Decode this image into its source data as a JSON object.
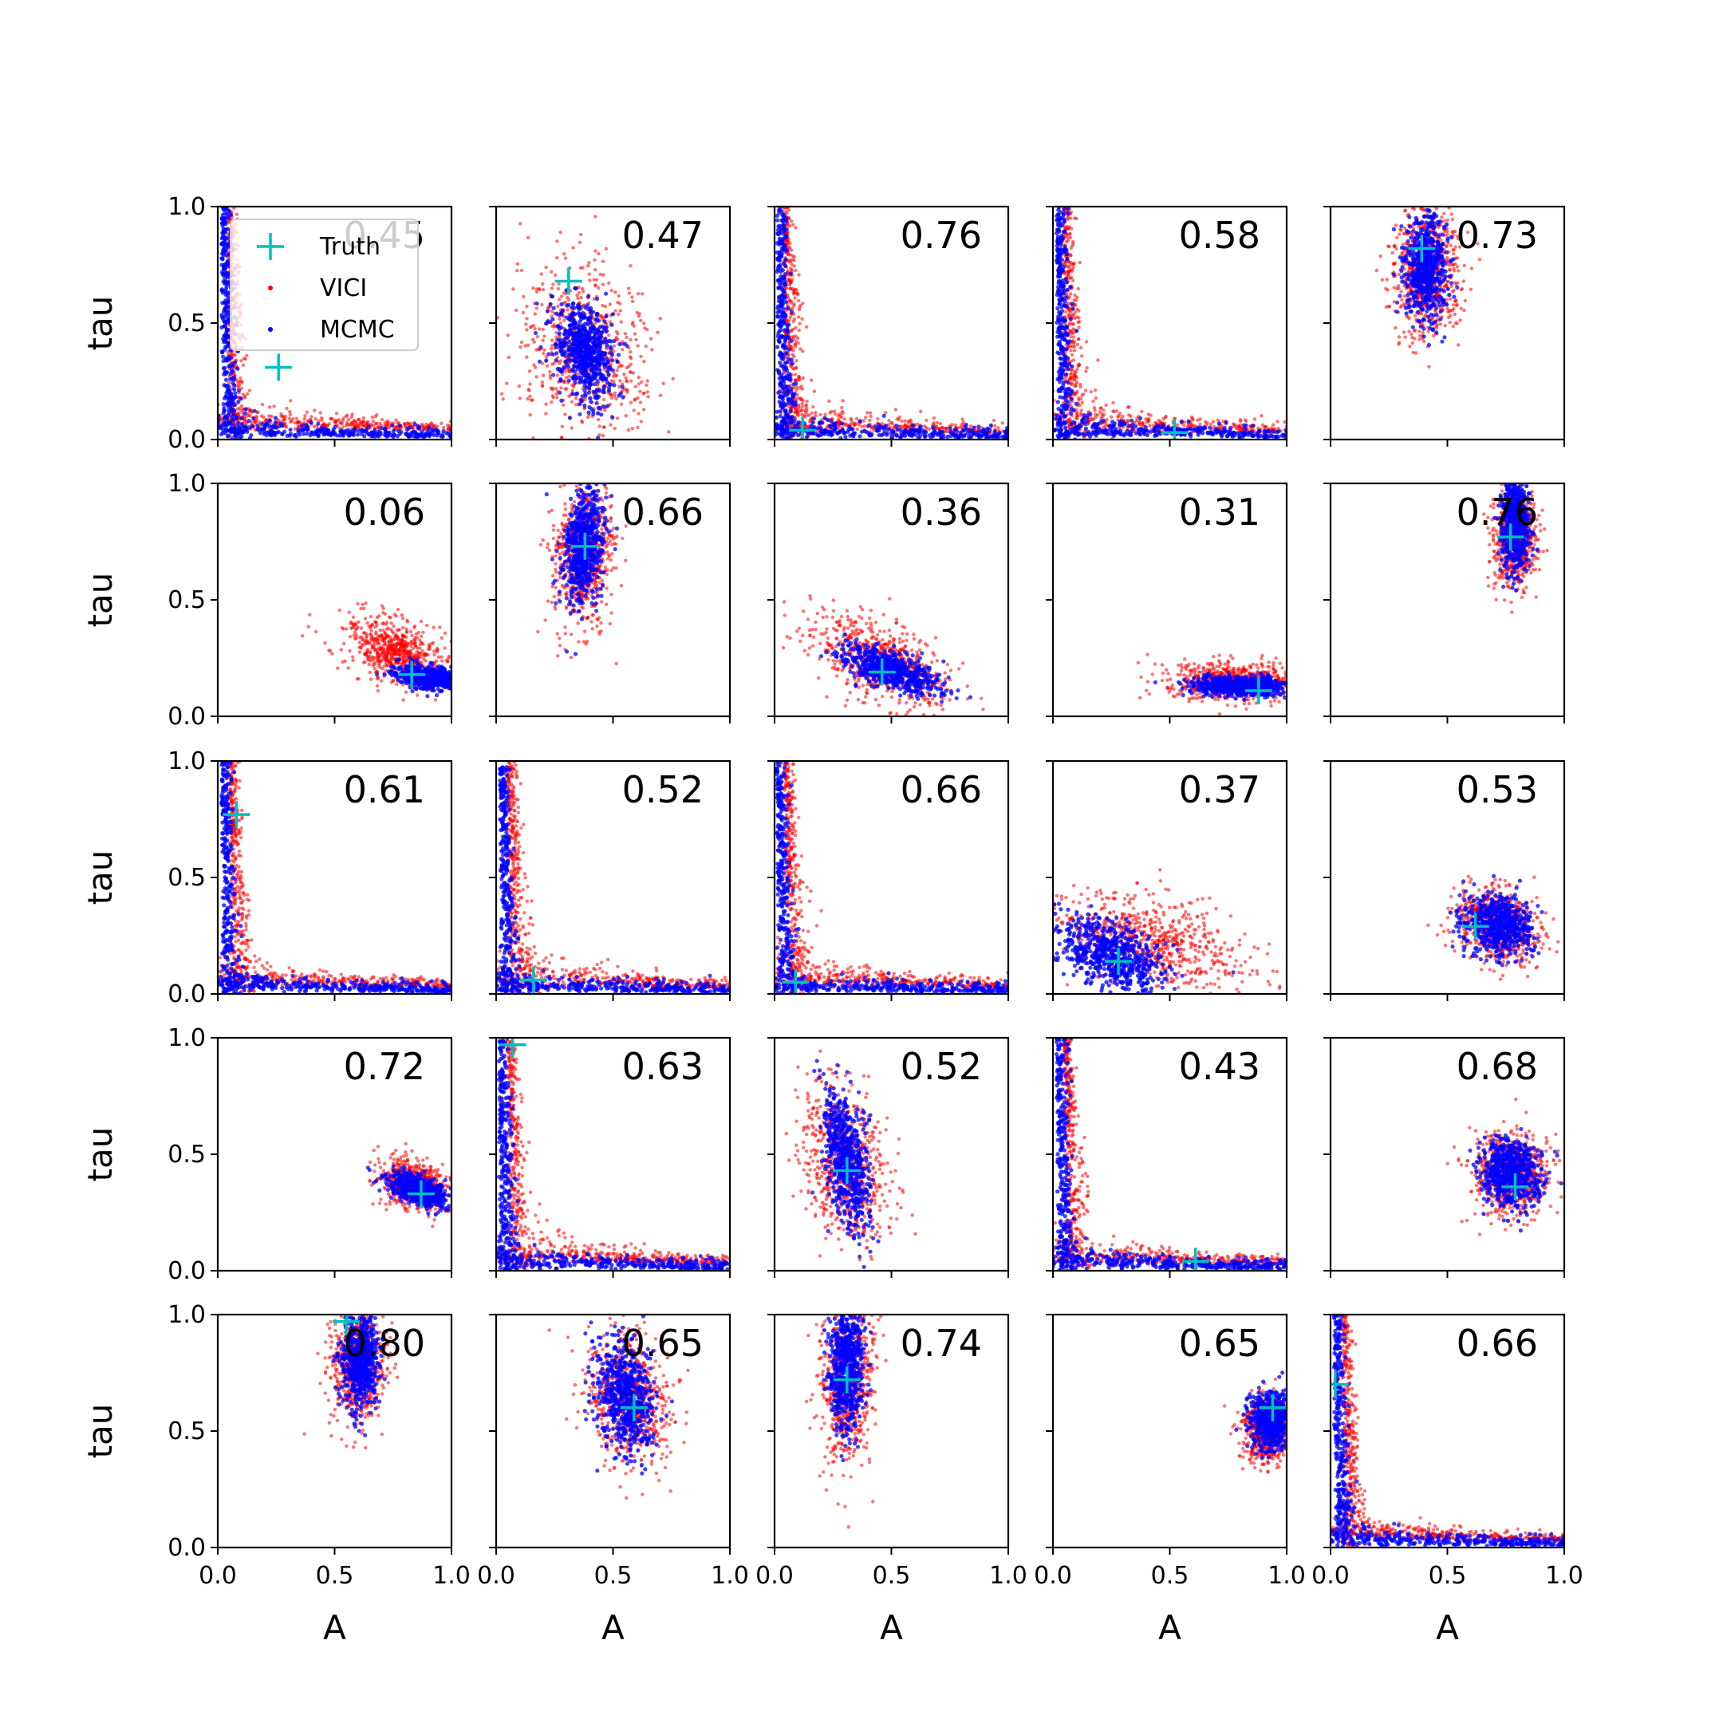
{
  "chart_data": {
    "type": "scatter",
    "layout": "5x5 grid of panels",
    "xlabel": "A",
    "ylabel": "tau",
    "xlim": [
      0,
      1
    ],
    "ylim": [
      0,
      1
    ],
    "xticks": [
      "0.0",
      "0.5",
      "1.0"
    ],
    "yticks": [
      "0.0",
      "0.5",
      "1.0"
    ],
    "legend": {
      "placement": "top-left of first panel",
      "entries": [
        {
          "label": "Truth",
          "marker": "plus",
          "color": "#00bfbf"
        },
        {
          "label": "VICI",
          "marker": "dot",
          "color": "#ff0000"
        },
        {
          "label": "MCMC",
          "marker": "dot",
          "color": "#0000ff"
        }
      ]
    },
    "colors": {
      "vici": "#ff0000",
      "mcmc": "#0000ff",
      "truth": "#00bfbf"
    },
    "panels": [
      {
        "annotation": "0.45",
        "truth": [
          0.26,
          0.31
        ],
        "vici": {
          "shape": "lshape",
          "cx": 0.08,
          "cy": 0.08,
          "spread": 0.45
        },
        "mcmc": {
          "shape": "lshape",
          "cx": 0.03,
          "cy": 0.02,
          "spread": 0.28
        }
      },
      {
        "annotation": "0.47",
        "truth": [
          0.31,
          0.68
        ],
        "vici": {
          "shape": "ellipse",
          "cx": 0.37,
          "cy": 0.38,
          "sx": 0.13,
          "sy": 0.2,
          "rho": -0.2
        },
        "mcmc": {
          "shape": "ellipse",
          "cx": 0.38,
          "cy": 0.38,
          "sx": 0.06,
          "sy": 0.1,
          "rho": -0.3
        }
      },
      {
        "annotation": "0.76",
        "truth": [
          0.12,
          0.04
        ],
        "vici": {
          "shape": "lshape",
          "cx": 0.07,
          "cy": 0.05,
          "spread": 0.6
        },
        "mcmc": {
          "shape": "lshape",
          "cx": 0.02,
          "cy": 0.01,
          "spread": 0.3
        }
      },
      {
        "annotation": "0.58",
        "truth": [
          0.52,
          0.03
        ],
        "vici": {
          "shape": "lshape",
          "cx": 0.08,
          "cy": 0.05,
          "spread": 0.6
        },
        "mcmc": {
          "shape": "lshape",
          "cx": 0.03,
          "cy": 0.02,
          "spread": 0.3
        }
      },
      {
        "annotation": "0.73",
        "truth": [
          0.39,
          0.82
        ],
        "vici": {
          "shape": "ellipse",
          "cx": 0.41,
          "cy": 0.72,
          "sx": 0.07,
          "sy": 0.14,
          "rho": 0
        },
        "mcmc": {
          "shape": "ellipse",
          "cx": 0.41,
          "cy": 0.75,
          "sx": 0.045,
          "sy": 0.11,
          "rho": 0
        }
      },
      {
        "annotation": "0.06",
        "truth": [
          0.83,
          0.18
        ],
        "vici": {
          "shape": "ellipse",
          "cx": 0.76,
          "cy": 0.28,
          "sx": 0.1,
          "sy": 0.07,
          "rho": -0.4
        },
        "mcmc": {
          "shape": "ellipse",
          "cx": 0.9,
          "cy": 0.17,
          "sx": 0.07,
          "sy": 0.025,
          "rho": -0.3
        }
      },
      {
        "annotation": "0.66",
        "truth": [
          0.38,
          0.73
        ],
        "vici": {
          "shape": "ellipse",
          "cx": 0.38,
          "cy": 0.7,
          "sx": 0.065,
          "sy": 0.15,
          "rho": 0.2
        },
        "mcmc": {
          "shape": "ellipse",
          "cx": 0.37,
          "cy": 0.72,
          "sx": 0.045,
          "sy": 0.12,
          "rho": 0.2
        }
      },
      {
        "annotation": "0.36",
        "truth": [
          0.46,
          0.19
        ],
        "vici": {
          "shape": "ellipse",
          "cx": 0.45,
          "cy": 0.24,
          "sx": 0.15,
          "sy": 0.1,
          "rho": -0.55
        },
        "mcmc": {
          "shape": "ellipse",
          "cx": 0.5,
          "cy": 0.2,
          "sx": 0.1,
          "sy": 0.05,
          "rho": -0.6
        }
      },
      {
        "annotation": "0.31",
        "truth": [
          0.88,
          0.11
        ],
        "vici": {
          "shape": "ellipse",
          "cx": 0.78,
          "cy": 0.15,
          "sx": 0.14,
          "sy": 0.04,
          "rho": -0.1
        },
        "mcmc": {
          "shape": "ellipse",
          "cx": 0.8,
          "cy": 0.13,
          "sx": 0.1,
          "sy": 0.022,
          "rho": -0.1
        }
      },
      {
        "annotation": "0.76",
        "truth": [
          0.77,
          0.77
        ],
        "vici": {
          "shape": "ellipse",
          "cx": 0.79,
          "cy": 0.78,
          "sx": 0.045,
          "sy": 0.11,
          "rho": 0
        },
        "mcmc": {
          "shape": "ellipse",
          "cx": 0.79,
          "cy": 0.82,
          "sx": 0.03,
          "sy": 0.1,
          "rho": 0
        }
      },
      {
        "annotation": "0.61",
        "truth": [
          0.08,
          0.77
        ],
        "vici": {
          "shape": "lshape",
          "cx": 0.1,
          "cy": 0.05,
          "spread": 0.45
        },
        "mcmc": {
          "shape": "lshape",
          "cx": 0.03,
          "cy": 0.01,
          "spread": 0.3
        }
      },
      {
        "annotation": "0.52",
        "truth": [
          0.16,
          0.06
        ],
        "vici": {
          "shape": "lshape",
          "cx": 0.09,
          "cy": 0.05,
          "spread": 0.6
        },
        "mcmc": {
          "shape": "lshape",
          "cx": 0.03,
          "cy": 0.01,
          "spread": 0.3
        }
      },
      {
        "annotation": "0.66",
        "truth": [
          0.09,
          0.05
        ],
        "vici": {
          "shape": "lshape",
          "cx": 0.08,
          "cy": 0.05,
          "spread": 0.6
        },
        "mcmc": {
          "shape": "lshape",
          "cx": 0.02,
          "cy": 0.01,
          "spread": 0.3
        }
      },
      {
        "annotation": "0.37",
        "truth": [
          0.28,
          0.14
        ],
        "vici": {
          "shape": "ellipse",
          "cx": 0.42,
          "cy": 0.22,
          "sx": 0.2,
          "sy": 0.1,
          "rho": -0.45
        },
        "mcmc": {
          "shape": "ellipse",
          "cx": 0.25,
          "cy": 0.16,
          "sx": 0.12,
          "sy": 0.08,
          "rho": -0.5
        }
      },
      {
        "annotation": "0.53",
        "truth": [
          0.62,
          0.29
        ],
        "vici": {
          "shape": "ellipse",
          "cx": 0.72,
          "cy": 0.29,
          "sx": 0.09,
          "sy": 0.08,
          "rho": -0.2
        },
        "mcmc": {
          "shape": "ellipse",
          "cx": 0.72,
          "cy": 0.3,
          "sx": 0.075,
          "sy": 0.065,
          "rho": -0.2
        }
      },
      {
        "annotation": "0.72",
        "truth": [
          0.87,
          0.33
        ],
        "vici": {
          "shape": "ellipse",
          "cx": 0.84,
          "cy": 0.37,
          "sx": 0.07,
          "sy": 0.055,
          "rho": -0.3
        },
        "mcmc": {
          "shape": "ellipse",
          "cx": 0.86,
          "cy": 0.35,
          "sx": 0.06,
          "sy": 0.035,
          "rho": -0.5
        }
      },
      {
        "annotation": "0.63",
        "truth": [
          0.07,
          0.97
        ],
        "vici": {
          "shape": "lshape",
          "cx": 0.09,
          "cy": 0.05,
          "spread": 0.55
        },
        "mcmc": {
          "shape": "lshape",
          "cx": 0.02,
          "cy": 0.01,
          "spread": 0.3
        }
      },
      {
        "annotation": "0.52",
        "truth": [
          0.31,
          0.43
        ],
        "vici": {
          "shape": "ellipse",
          "cx": 0.31,
          "cy": 0.45,
          "sx": 0.09,
          "sy": 0.16,
          "rho": -0.3
        },
        "mcmc": {
          "shape": "ellipse",
          "cx": 0.31,
          "cy": 0.48,
          "sx": 0.05,
          "sy": 0.15,
          "rho": -0.5
        }
      },
      {
        "annotation": "0.43",
        "truth": [
          0.61,
          0.04
        ],
        "vici": {
          "shape": "lshape",
          "cx": 0.09,
          "cy": 0.05,
          "spread": 0.55
        },
        "mcmc": {
          "shape": "lshape",
          "cx": 0.03,
          "cy": 0.01,
          "spread": 0.3
        }
      },
      {
        "annotation": "0.68",
        "truth": [
          0.79,
          0.36
        ],
        "vici": {
          "shape": "ellipse",
          "cx": 0.77,
          "cy": 0.41,
          "sx": 0.08,
          "sy": 0.09,
          "rho": 0
        },
        "mcmc": {
          "shape": "ellipse",
          "cx": 0.77,
          "cy": 0.42,
          "sx": 0.065,
          "sy": 0.075,
          "rho": 0
        }
      },
      {
        "annotation": "0.80",
        "truth": [
          0.55,
          0.97
        ],
        "vici": {
          "shape": "ellipse",
          "cx": 0.6,
          "cy": 0.78,
          "sx": 0.06,
          "sy": 0.12,
          "rho": 0
        },
        "mcmc": {
          "shape": "ellipse",
          "cx": 0.61,
          "cy": 0.8,
          "sx": 0.04,
          "sy": 0.1,
          "rho": 0
        }
      },
      {
        "annotation": "0.65",
        "truth": [
          0.59,
          0.6
        ],
        "vici": {
          "shape": "ellipse",
          "cx": 0.57,
          "cy": 0.63,
          "sx": 0.09,
          "sy": 0.14,
          "rho": -0.2
        },
        "mcmc": {
          "shape": "ellipse",
          "cx": 0.55,
          "cy": 0.65,
          "sx": 0.06,
          "sy": 0.12,
          "rho": -0.2
        }
      },
      {
        "annotation": "0.74",
        "truth": [
          0.31,
          0.72
        ],
        "vici": {
          "shape": "ellipse",
          "cx": 0.31,
          "cy": 0.72,
          "sx": 0.06,
          "sy": 0.19,
          "rho": 0.1
        },
        "mcmc": {
          "shape": "ellipse",
          "cx": 0.31,
          "cy": 0.78,
          "sx": 0.035,
          "sy": 0.14,
          "rho": 0.1
        }
      },
      {
        "annotation": "0.65",
        "truth": [
          0.94,
          0.6
        ],
        "vici": {
          "shape": "ellipse",
          "cx": 0.92,
          "cy": 0.5,
          "sx": 0.05,
          "sy": 0.07,
          "rho": 0
        },
        "mcmc": {
          "shape": "ellipse",
          "cx": 0.93,
          "cy": 0.55,
          "sx": 0.045,
          "sy": 0.06,
          "rho": 0
        }
      },
      {
        "annotation": "0.66",
        "truth": [
          0.02,
          0.7
        ],
        "vici": {
          "shape": "lshape",
          "cx": 0.1,
          "cy": 0.05,
          "spread": 0.45
        },
        "mcmc": {
          "shape": "lshape",
          "cx": 0.03,
          "cy": 0.01,
          "spread": 0.3
        }
      }
    ]
  }
}
